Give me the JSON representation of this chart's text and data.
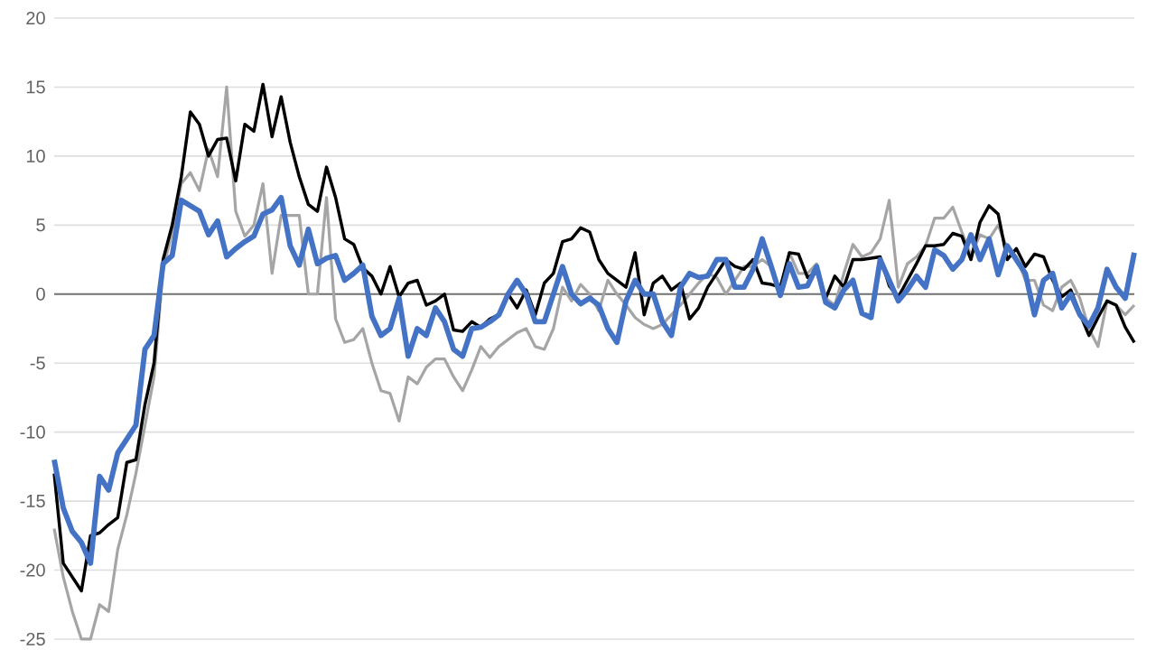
{
  "chart_data": {
    "type": "line",
    "categories": [
      null,
      null,
      null,
      null,
      null,
      null,
      null,
      null,
      null,
      null,
      null,
      null,
      null,
      null,
      null,
      null,
      null,
      null,
      null,
      null,
      null,
      null,
      null,
      null,
      null,
      null,
      null,
      null,
      null,
      null,
      null,
      null,
      null,
      null,
      null,
      null,
      null,
      null,
      null,
      null,
      null,
      null,
      null,
      null,
      null,
      null,
      null,
      null,
      null,
      null,
      null,
      null,
      null,
      null,
      null,
      null,
      null,
      null,
      null,
      null,
      null,
      null,
      null,
      null,
      null,
      null,
      null,
      null,
      null,
      null,
      null,
      null,
      null,
      null,
      null,
      null,
      null,
      null,
      null,
      null,
      null,
      null,
      null,
      null,
      null,
      null,
      null,
      null,
      null,
      null,
      null,
      null,
      null,
      null,
      null,
      null,
      null,
      null,
      null,
      null,
      null,
      null,
      null,
      null,
      null,
      null,
      null,
      null,
      null,
      null,
      null,
      null,
      null,
      null,
      null,
      null,
      null,
      null,
      null,
      null
    ],
    "series": [
      {
        "color": "#a5a5a5",
        "values": [
          -17,
          -20.5,
          -23,
          -25,
          -25,
          -22.5,
          -23,
          -18.5,
          -16,
          -13,
          -9.5,
          -6,
          1.8,
          4.5,
          8,
          8.8,
          7.5,
          10.5,
          8.5,
          15,
          6,
          4.2,
          5,
          8,
          1.5,
          5.7,
          5.7,
          5.7,
          0,
          0,
          7,
          -1.8,
          -3.5,
          -3.3,
          -2.5,
          -5,
          -7,
          -7.2,
          -9.2,
          -6,
          -6.5,
          -5.3,
          -4.7,
          -4.7,
          -6,
          -7,
          -5.5,
          -3.8,
          -4.6,
          -3.8,
          -3.3,
          -2.8,
          -2.5,
          -3.8,
          -4,
          -2.5,
          0.5,
          -0.5,
          0.7,
          0,
          -1.2,
          1,
          0,
          -0.8,
          -1.7,
          -2.2,
          -2.5,
          -2.2,
          -1.5,
          -0.8,
          0,
          0.8,
          1.5,
          1.2,
          0,
          1,
          2,
          2,
          2.5,
          2,
          0,
          3,
          1.5,
          1.5,
          2.2,
          -0.3,
          -0.8,
          1.5,
          3.6,
          2.7,
          3,
          4,
          6.8,
          0.5,
          2.2,
          2.7,
          3.5,
          5.5,
          5.5,
          6.3,
          4.5,
          2.8,
          4.3,
          4,
          5,
          3.3,
          2.7,
          1,
          1,
          -0.8,
          -1.2,
          0.5,
          1,
          -0.3,
          -2.5,
          -3.8,
          -0.5,
          -0.8,
          -1.5,
          -0.8
        ]
      },
      {
        "color": "#000000",
        "values": [
          -13,
          -19.5,
          -20.5,
          -21.5,
          -17.5,
          -17.3,
          -16.7,
          -16.2,
          -12.2,
          -12,
          -8,
          -5,
          2.5,
          5,
          8.5,
          13.2,
          12.3,
          10,
          11.2,
          11.3,
          8.2,
          12.3,
          11.8,
          15.2,
          11.4,
          14.3,
          11,
          8.5,
          6.5,
          6,
          9.2,
          7,
          4,
          3.6,
          1.9,
          1.3,
          0,
          2,
          -0.2,
          0.8,
          1,
          -0.8,
          -0.5,
          0,
          -2.6,
          -2.7,
          -2,
          -2.4,
          -1.8,
          -1.5,
          0,
          -1,
          0.3,
          -1.5,
          0.8,
          1.5,
          3.8,
          4,
          4.8,
          4.5,
          2.5,
          1.5,
          1,
          0.5,
          3,
          -1.5,
          0.8,
          1.3,
          0.3,
          0.8,
          -1.8,
          -1,
          0.5,
          1.5,
          2.5,
          2,
          1.8,
          2.5,
          0.8,
          0.7,
          0.5,
          3,
          2.9,
          1.2,
          1.6,
          -0.3,
          1.3,
          0.5,
          2.5,
          2.5,
          2.6,
          2.7,
          0.6,
          -0.2,
          1,
          2.2,
          3.5,
          3.5,
          3.6,
          4.4,
          4.2,
          2.5,
          5.2,
          6.4,
          5.8,
          2.5,
          3.3,
          2,
          2.9,
          2.7,
          1,
          -0.2,
          0.3,
          -1.4,
          -3,
          -1.7,
          -0.5,
          -0.8,
          -2.4,
          -3.5
        ]
      },
      {
        "color": "#4472c4",
        "values": [
          -12,
          -15.5,
          -17.2,
          -18,
          -19.5,
          -13.2,
          -14.2,
          -11.5,
          -10.5,
          -9.5,
          -4,
          -3,
          2.2,
          2.8,
          6.8,
          6.4,
          6,
          4.3,
          5.3,
          2.7,
          3.3,
          3.8,
          4.2,
          5.8,
          6.1,
          7,
          3.5,
          2.1,
          4.7,
          2.2,
          2.6,
          2.8,
          1,
          1.5,
          2.1,
          -1.6,
          -3,
          -2.5,
          -0.3,
          -4.5,
          -2.5,
          -3,
          -1,
          -2,
          -4,
          -4.5,
          -2.5,
          -2.4,
          -2,
          -1.5,
          0,
          1,
          0,
          -2,
          -2,
          0,
          2,
          0,
          -0.7,
          -0.3,
          -0.8,
          -2.5,
          -3.5,
          -0.5,
          1,
          0,
          0,
          -2,
          -3,
          0.5,
          1.5,
          1.2,
          1.3,
          2.5,
          2.5,
          0.5,
          0.5,
          1.8,
          4,
          2,
          -0.1,
          2.2,
          0.5,
          0.6,
          2,
          -0.6,
          -1,
          0.3,
          1,
          -1.4,
          -1.7,
          2.5,
          1,
          -0.5,
          0.3,
          1.3,
          0.5,
          3.2,
          2.8,
          1.8,
          2.5,
          4.3,
          2.5,
          4,
          1.4,
          3.5,
          2.5,
          1.5,
          -1.5,
          1,
          1.5,
          -1,
          0,
          -1.5,
          -2.3,
          -1,
          1.8,
          0.5,
          -0.3,
          3
        ]
      }
    ],
    "ylim": [
      -25,
      20
    ],
    "yticks": [
      -25,
      -20,
      -15,
      -10,
      -5,
      0,
      5,
      10,
      15,
      20
    ],
    "grid": "y",
    "marker": "none",
    "line_style": "solid"
  }
}
